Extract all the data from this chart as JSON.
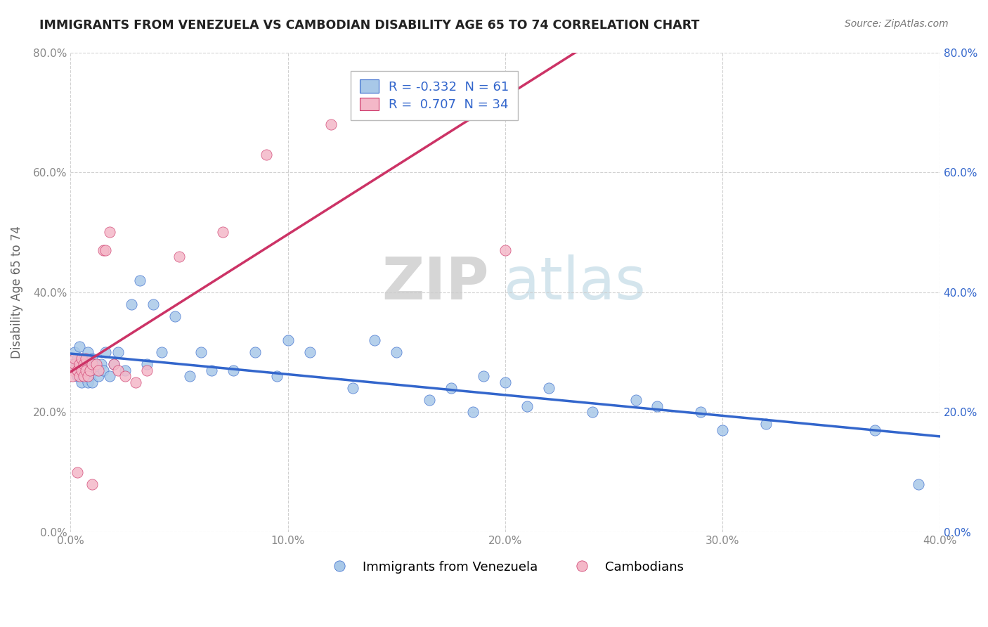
{
  "title": "IMMIGRANTS FROM VENEZUELA VS CAMBODIAN DISABILITY AGE 65 TO 74 CORRELATION CHART",
  "source": "Source: ZipAtlas.com",
  "ylabel": "Disability Age 65 to 74",
  "legend_labels": [
    "Immigrants from Venezuela",
    "Cambodians"
  ],
  "blue_color": "#a8c8e8",
  "pink_color": "#f4b8c8",
  "blue_line_color": "#3366cc",
  "pink_line_color": "#cc3366",
  "R_blue": -0.332,
  "N_blue": 61,
  "R_pink": 0.707,
  "N_pink": 34,
  "xlim": [
    0.0,
    0.4
  ],
  "ylim": [
    0.0,
    0.8
  ],
  "xticks": [
    0.0,
    0.1,
    0.2,
    0.3,
    0.4
  ],
  "yticks": [
    0.0,
    0.2,
    0.4,
    0.6,
    0.8
  ],
  "watermark_zip": "ZIP",
  "watermark_atlas": "atlas",
  "background_color": "#ffffff",
  "grid_color": "#cccccc",
  "blue_scatter_x": [
    0.001,
    0.002,
    0.002,
    0.003,
    0.003,
    0.004,
    0.004,
    0.005,
    0.005,
    0.006,
    0.006,
    0.007,
    0.007,
    0.008,
    0.008,
    0.009,
    0.009,
    0.01,
    0.01,
    0.011,
    0.012,
    0.013,
    0.014,
    0.015,
    0.016,
    0.018,
    0.02,
    0.022,
    0.025,
    0.028,
    0.032,
    0.035,
    0.038,
    0.042,
    0.048,
    0.055,
    0.06,
    0.065,
    0.075,
    0.085,
    0.095,
    0.1,
    0.11,
    0.13,
    0.14,
    0.15,
    0.165,
    0.175,
    0.185,
    0.19,
    0.2,
    0.21,
    0.22,
    0.24,
    0.26,
    0.27,
    0.29,
    0.3,
    0.32,
    0.37,
    0.39
  ],
  "blue_scatter_y": [
    0.28,
    0.27,
    0.3,
    0.26,
    0.29,
    0.27,
    0.31,
    0.25,
    0.28,
    0.26,
    0.29,
    0.27,
    0.28,
    0.25,
    0.3,
    0.26,
    0.27,
    0.25,
    0.29,
    0.28,
    0.27,
    0.26,
    0.28,
    0.27,
    0.3,
    0.26,
    0.28,
    0.3,
    0.27,
    0.38,
    0.42,
    0.28,
    0.38,
    0.3,
    0.36,
    0.26,
    0.3,
    0.27,
    0.27,
    0.3,
    0.26,
    0.32,
    0.3,
    0.24,
    0.32,
    0.3,
    0.22,
    0.24,
    0.2,
    0.26,
    0.25,
    0.21,
    0.24,
    0.2,
    0.22,
    0.21,
    0.2,
    0.17,
    0.18,
    0.17,
    0.08
  ],
  "pink_scatter_x": [
    0.001,
    0.001,
    0.002,
    0.002,
    0.003,
    0.003,
    0.004,
    0.004,
    0.005,
    0.005,
    0.006,
    0.006,
    0.007,
    0.007,
    0.008,
    0.009,
    0.01,
    0.01,
    0.012,
    0.013,
    0.015,
    0.016,
    0.018,
    0.02,
    0.022,
    0.025,
    0.03,
    0.035,
    0.05,
    0.07,
    0.09,
    0.12,
    0.16,
    0.2
  ],
  "pink_scatter_y": [
    0.27,
    0.26,
    0.28,
    0.29,
    0.27,
    0.1,
    0.28,
    0.26,
    0.27,
    0.29,
    0.26,
    0.28,
    0.27,
    0.29,
    0.26,
    0.27,
    0.28,
    0.08,
    0.28,
    0.27,
    0.47,
    0.47,
    0.5,
    0.28,
    0.27,
    0.26,
    0.25,
    0.27,
    0.46,
    0.5,
    0.63,
    0.68,
    0.73,
    0.47
  ]
}
